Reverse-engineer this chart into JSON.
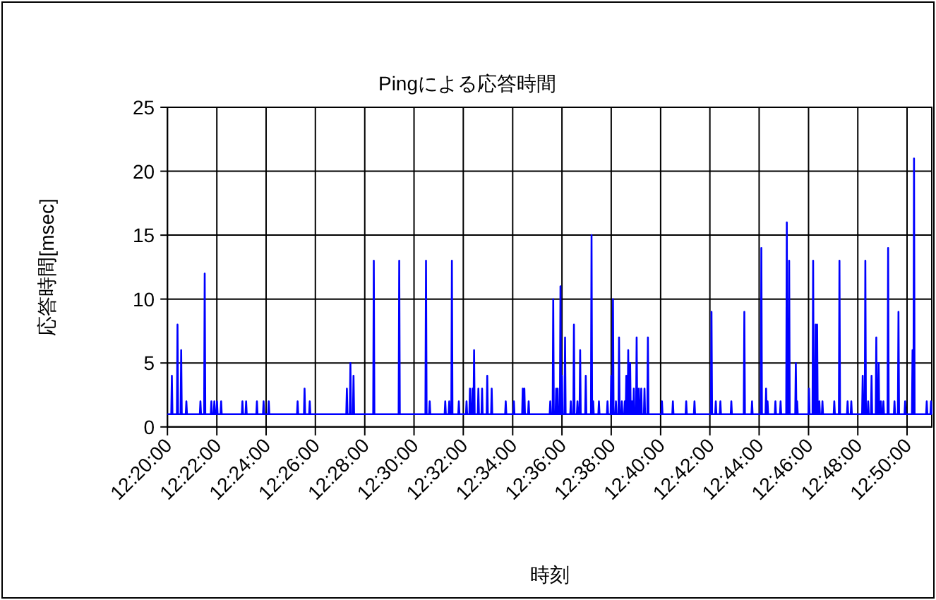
{
  "chart_data": {
    "type": "line",
    "title": "Pingによる応答時間",
    "xlabel": "時刻",
    "ylabel": "応答時間[msec]",
    "grid": true,
    "xlim": [
      12.3333,
      12.85
    ],
    "ylim": [
      0,
      25
    ],
    "yticks": [
      0,
      5,
      10,
      15,
      20,
      25
    ],
    "xticks": [
      {
        "value": 12.3333,
        "label": "12:20:00"
      },
      {
        "value": 12.3667,
        "label": "12:22:00"
      },
      {
        "value": 12.4,
        "label": "12:24:00"
      },
      {
        "value": 12.4333,
        "label": "12:26:00"
      },
      {
        "value": 12.4667,
        "label": "12:28:00"
      },
      {
        "value": 12.5,
        "label": "12:30:00"
      },
      {
        "value": 12.5333,
        "label": "12:32:00"
      },
      {
        "value": 12.5667,
        "label": "12:34:00"
      },
      {
        "value": 12.6,
        "label": "12:36:00"
      },
      {
        "value": 12.6333,
        "label": "12:38:00"
      },
      {
        "value": 12.6667,
        "label": "12:40:00"
      },
      {
        "value": 12.7,
        "label": "12:42:00"
      },
      {
        "value": 12.7333,
        "label": "12:44:00"
      },
      {
        "value": 12.7667,
        "label": "12:46:00"
      },
      {
        "value": 12.8,
        "label": "12:48:00"
      },
      {
        "value": 12.8333,
        "label": "12:50:00"
      }
    ],
    "series": [
      {
        "color": "#0000ff",
        "x": [
          12.3333,
          12.3359,
          12.3363,
          12.3367,
          12.3397,
          12.3401,
          12.3405,
          12.3422,
          12.3426,
          12.343,
          12.3457,
          12.3461,
          12.3465,
          12.3552,
          12.3556,
          12.356,
          12.3581,
          12.3585,
          12.3589,
          12.3626,
          12.363,
          12.3634,
          12.3646,
          12.365,
          12.3654,
          12.3664,
          12.3668,
          12.3672,
          12.3692,
          12.3696,
          12.37,
          12.3836,
          12.384,
          12.3844,
          12.3861,
          12.3865,
          12.3869,
          12.3934,
          12.3938,
          12.3942,
          12.3979,
          12.3983,
          12.3987,
          12.4014,
          12.4018,
          12.4022,
          12.4209,
          12.4213,
          12.4217,
          12.4256,
          12.426,
          12.4264,
          12.4291,
          12.4295,
          12.4299,
          12.4542,
          12.4546,
          12.455,
          12.4566,
          12.457,
          12.4574,
          12.4587,
          12.4591,
          12.4595,
          12.4724,
          12.4728,
          12.4732,
          12.4896,
          12.49,
          12.4904,
          12.5077,
          12.5081,
          12.5085,
          12.5102,
          12.5106,
          12.511,
          12.5207,
          12.5211,
          12.5215,
          12.5234,
          12.5238,
          12.5242,
          12.5252,
          12.5256,
          12.526,
          12.5299,
          12.5303,
          12.5307,
          12.5351,
          12.5355,
          12.5359,
          12.5374,
          12.5378,
          12.5382,
          12.5391,
          12.5395,
          12.5399,
          12.5402,
          12.5406,
          12.541,
          12.5431,
          12.5435,
          12.5439,
          12.5456,
          12.546,
          12.5464,
          12.5491,
          12.5495,
          12.5499,
          12.5521,
          12.5525,
          12.5529,
          12.5616,
          12.562,
          12.5624,
          12.5671,
          12.5675,
          12.5679,
          12.5731,
          12.5735,
          12.5739,
          12.5742,
          12.5746,
          12.575,
          12.5771,
          12.5775,
          12.5779,
          12.5917,
          12.5921,
          12.5925,
          12.5937,
          12.5941,
          12.5945,
          12.5957,
          12.5961,
          12.5965,
          12.5967,
          12.5971,
          12.5975,
          12.5986,
          12.599,
          12.5994,
          12.5996,
          12.6,
          12.6004,
          12.6017,
          12.6021,
          12.6025,
          12.6056,
          12.606,
          12.6064,
          12.6077,
          12.6081,
          12.6085,
          12.6101,
          12.6105,
          12.6109,
          12.6119,
          12.6123,
          12.6127,
          12.6157,
          12.6161,
          12.6165,
          12.6196,
          12.62,
          12.6204,
          12.6207,
          12.6211,
          12.6215,
          12.6246,
          12.625,
          12.6254,
          12.6304,
          12.6308,
          12.6312,
          12.6329,
          12.6333,
          12.6337,
          12.6341,
          12.6345,
          12.6349,
          12.6361,
          12.6365,
          12.6369,
          12.6382,
          12.6386,
          12.639,
          12.6401,
          12.6405,
          12.6409,
          12.6421,
          12.6425,
          12.6429,
          12.6431,
          12.6435,
          12.6439,
          12.6444,
          12.6448,
          12.6452,
          12.6457,
          12.6461,
          12.6465,
          12.6469,
          12.6473,
          12.6477,
          12.6482,
          12.6486,
          12.649,
          12.6501,
          12.6505,
          12.6509,
          12.6516,
          12.652,
          12.6524,
          12.6532,
          12.6536,
          12.654,
          12.6554,
          12.6558,
          12.6562,
          12.6577,
          12.6581,
          12.6585,
          12.6672,
          12.6676,
          12.668,
          12.6746,
          12.675,
          12.6754,
          12.6836,
          12.684,
          12.6844,
          12.6892,
          12.6896,
          12.69,
          12.7007,
          12.7011,
          12.7015,
          12.7036,
          12.704,
          12.7044,
          12.7067,
          12.7071,
          12.7075,
          12.7141,
          12.7145,
          12.7149,
          12.7229,
          12.7233,
          12.7237,
          12.7281,
          12.7285,
          12.7289,
          12.7344,
          12.7348,
          12.7352,
          12.7376,
          12.738,
          12.7384,
          12.7386,
          12.739,
          12.7394,
          12.7439,
          12.7443,
          12.7447,
          12.7474,
          12.7478,
          12.7482,
          12.7516,
          12.752,
          12.7524,
          12.7532,
          12.7536,
          12.754,
          12.7577,
          12.7581,
          12.7585,
          12.7586,
          12.759,
          12.7594,
          12.7666,
          12.767,
          12.7674,
          12.7694,
          12.7698,
          12.7702,
          12.7711,
          12.7715,
          12.7719,
          12.7721,
          12.7725,
          12.7729,
          12.7736,
          12.774,
          12.7744,
          12.7757,
          12.7761,
          12.7765,
          12.7837,
          12.7841,
          12.7845,
          12.7872,
          12.7876,
          12.788,
          12.7927,
          12.7931,
          12.7935,
          12.7952,
          12.7956,
          12.796,
          12.8029,
          12.8033,
          12.8037,
          12.8047,
          12.8051,
          12.8055,
          12.8066,
          12.807,
          12.8074,
          12.8089,
          12.8093,
          12.8097,
          12.8121,
          12.8125,
          12.8129,
          12.8137,
          12.8141,
          12.8145,
          12.8152,
          12.8156,
          12.816,
          12.8169,
          12.8173,
          12.8177,
          12.8201,
          12.8205,
          12.8209,
          12.8244,
          12.8248,
          12.8252,
          12.8271,
          12.8275,
          12.8279,
          12.8316,
          12.832,
          12.8324,
          12.8366,
          12.837,
          12.8374,
          12.8376,
          12.838,
          12.8384,
          12.8462,
          12.8466,
          12.847,
          12.8491,
          12.8495,
          12.8499,
          12.85
        ],
        "values": [
          1,
          1,
          4,
          1,
          1,
          8,
          1,
          1,
          6,
          1,
          1,
          2,
          1,
          1,
          2,
          1,
          1,
          12,
          1,
          1,
          2,
          1,
          1,
          2,
          1,
          1,
          2,
          1,
          1,
          2,
          1,
          1,
          2,
          1,
          1,
          2,
          1,
          1,
          2,
          1,
          1,
          2,
          1,
          1,
          2,
          1,
          1,
          2,
          1,
          1,
          3,
          1,
          1,
          2,
          1,
          1,
          3,
          1,
          1,
          5,
          1,
          1,
          4,
          1,
          1,
          13,
          1,
          1,
          13,
          1,
          1,
          13,
          1,
          1,
          2,
          1,
          1,
          2,
          1,
          1,
          2,
          1,
          1,
          13,
          1,
          1,
          2,
          1,
          1,
          2,
          1,
          1,
          3,
          1,
          1,
          3,
          1,
          1,
          6,
          1,
          1,
          3,
          1,
          1,
          3,
          1,
          1,
          4,
          1,
          1,
          3,
          1,
          1,
          2,
          1,
          1,
          2,
          1,
          1,
          3,
          1,
          1,
          3,
          1,
          1,
          2,
          1,
          1,
          2,
          1,
          1,
          10,
          1,
          1,
          3,
          1,
          1,
          3,
          1,
          1,
          11,
          1,
          1,
          4,
          1,
          1,
          7,
          1,
          1,
          2,
          1,
          1,
          8,
          1,
          1,
          2,
          1,
          1,
          6,
          1,
          1,
          4,
          1,
          1,
          15,
          1,
          1,
          2,
          1,
          1,
          2,
          1,
          1,
          2,
          1,
          1,
          4,
          1,
          1,
          10,
          1,
          1,
          2,
          1,
          1,
          7,
          1,
          1,
          2,
          1,
          1,
          2,
          1,
          1,
          4,
          1,
          1,
          6,
          1,
          1,
          5,
          1,
          1,
          2,
          1,
          1,
          3,
          1,
          1,
          7,
          1,
          1,
          3,
          1,
          1,
          3,
          1,
          1,
          3,
          1,
          1,
          7,
          1,
          1,
          2,
          1,
          1,
          2,
          1,
          1,
          2,
          1,
          1,
          2,
          1,
          1,
          9,
          1,
          1,
          2,
          1,
          1,
          2,
          1,
          1,
          2,
          1,
          1,
          9,
          1,
          1,
          2,
          1,
          1,
          14,
          1,
          1,
          3,
          1,
          1,
          2,
          1,
          1,
          2,
          1,
          1,
          2,
          1,
          1,
          16,
          1,
          1,
          13,
          1,
          1,
          5,
          1,
          1,
          2,
          1,
          1,
          3,
          1,
          1,
          13,
          1,
          1,
          8,
          1,
          1,
          8,
          1,
          1,
          2,
          1,
          1,
          2,
          1,
          1,
          2,
          1,
          1,
          13,
          1,
          1,
          2,
          1,
          1,
          2,
          1,
          1,
          4,
          1,
          1,
          13,
          1,
          1,
          2,
          1,
          1,
          4,
          1,
          1,
          7,
          1,
          1,
          5,
          1,
          1,
          2,
          1,
          1,
          2,
          1,
          1,
          14,
          1,
          1,
          2,
          1,
          1,
          9,
          1,
          1,
          2,
          1,
          1,
          6,
          1,
          1,
          21,
          1,
          1,
          2,
          1,
          1,
          2,
          1,
          1
        ]
      }
    ]
  }
}
